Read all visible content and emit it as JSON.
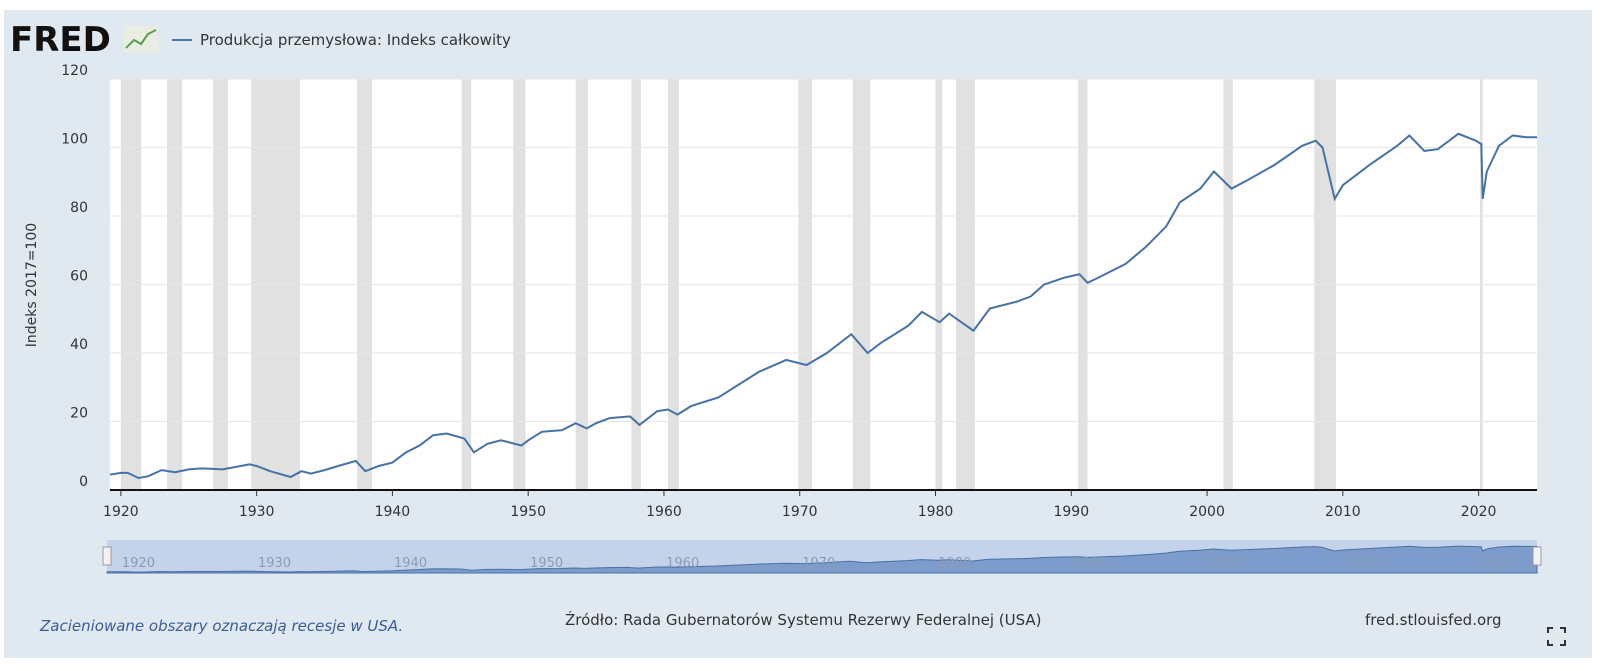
{
  "logo": "FRED",
  "chart_data": {
    "type": "line",
    "y_label": "Indeks 2017=100",
    "xlim": [
      1919.2,
      2024.3
    ],
    "ylim": [
      0,
      120
    ],
    "xticks": [
      1920,
      1930,
      1940,
      1950,
      1960,
      1970,
      1980,
      1990,
      2000,
      2010,
      2020
    ],
    "yticks": [
      0,
      20,
      40,
      60,
      80,
      100,
      120
    ],
    "grid": true,
    "recession_color": "#e1e1e1",
    "recessions": [
      [
        1920.0,
        1921.5
      ],
      [
        1923.4,
        1924.5
      ],
      [
        1926.8,
        1927.9
      ],
      [
        1929.6,
        1933.2
      ],
      [
        1937.4,
        1938.5
      ],
      [
        1945.1,
        1945.8
      ],
      [
        1948.9,
        1949.8
      ],
      [
        1953.5,
        1954.4
      ],
      [
        1957.6,
        1958.3
      ],
      [
        1960.3,
        1961.1
      ],
      [
        1969.9,
        1970.9
      ],
      [
        1973.9,
        1975.2
      ],
      [
        1980.0,
        1980.5
      ],
      [
        1981.5,
        1982.9
      ],
      [
        1990.5,
        1991.2
      ],
      [
        2001.2,
        2001.9
      ],
      [
        2007.9,
        2009.5
      ],
      [
        2020.1,
        2020.3
      ]
    ],
    "series": [
      {
        "name": "Produkcja przemysłowa: Indeks całkowity",
        "color": "#4572a7",
        "x": [
          1919.2,
          1920,
          1920.5,
          1921.3,
          1922,
          1923,
          1924,
          1925,
          1926,
          1927.5,
          1929.5,
          1930,
          1931,
          1932.5,
          1933.3,
          1934,
          1935,
          1936,
          1937.3,
          1938,
          1939,
          1940,
          1941,
          1942,
          1943,
          1944,
          1945.3,
          1946,
          1947,
          1948,
          1949.5,
          1950,
          1951,
          1952.5,
          1953.5,
          1954.3,
          1955,
          1956,
          1957.5,
          1958.2,
          1959.5,
          1960.3,
          1961,
          1962,
          1964,
          1966,
          1967,
          1969,
          1970.5,
          1972,
          1973.8,
          1975,
          1976,
          1978,
          1979,
          1980.3,
          1981,
          1982.8,
          1984,
          1986,
          1987,
          1988,
          1989.5,
          1990.6,
          1991.2,
          1992,
          1994,
          1995.5,
          1997,
          1998,
          1999.5,
          2000.5,
          2001.8,
          2003,
          2005,
          2007,
          2008,
          2008.5,
          2009.4,
          2010,
          2012,
          2014,
          2014.9,
          2016,
          2017,
          2018.5,
          2019.8,
          2020.2,
          2020.3,
          2020.6,
          2021.5,
          2022.5,
          2023.5,
          2024.3
        ],
        "values": [
          4.5,
          5,
          5,
          3.5,
          4,
          5.8,
          5.2,
          6,
          6.3,
          6,
          7.5,
          7,
          5.5,
          3.8,
          5.5,
          4.8,
          5.8,
          7,
          8.5,
          5.5,
          7,
          8,
          11,
          13,
          16,
          16.5,
          15,
          11,
          13.5,
          14.5,
          13,
          14.5,
          17,
          17.5,
          19.5,
          18,
          19.5,
          21,
          21.5,
          19,
          23,
          23.5,
          22,
          24.5,
          27,
          32,
          34.5,
          38,
          36.5,
          40,
          45.5,
          40,
          43,
          48,
          52,
          49,
          51.5,
          46.5,
          53,
          55,
          56.5,
          60,
          62,
          63,
          60.5,
          62,
          66,
          71,
          77,
          84,
          88,
          93,
          88,
          90.5,
          95,
          100.5,
          102,
          100,
          85,
          89,
          95,
          100.5,
          103.5,
          99,
          99.5,
          104,
          102,
          101,
          85,
          93,
          100.5,
          103.5,
          103,
          103
        ]
      }
    ]
  },
  "footer": {
    "note": "Zacieniowane obszary oznaczają recesje w USA.",
    "source": "Źródło: Rada Gubernatorów Systemu Rezerwy Federalnej (USA)",
    "site": "fred.stlouisfed.org"
  }
}
